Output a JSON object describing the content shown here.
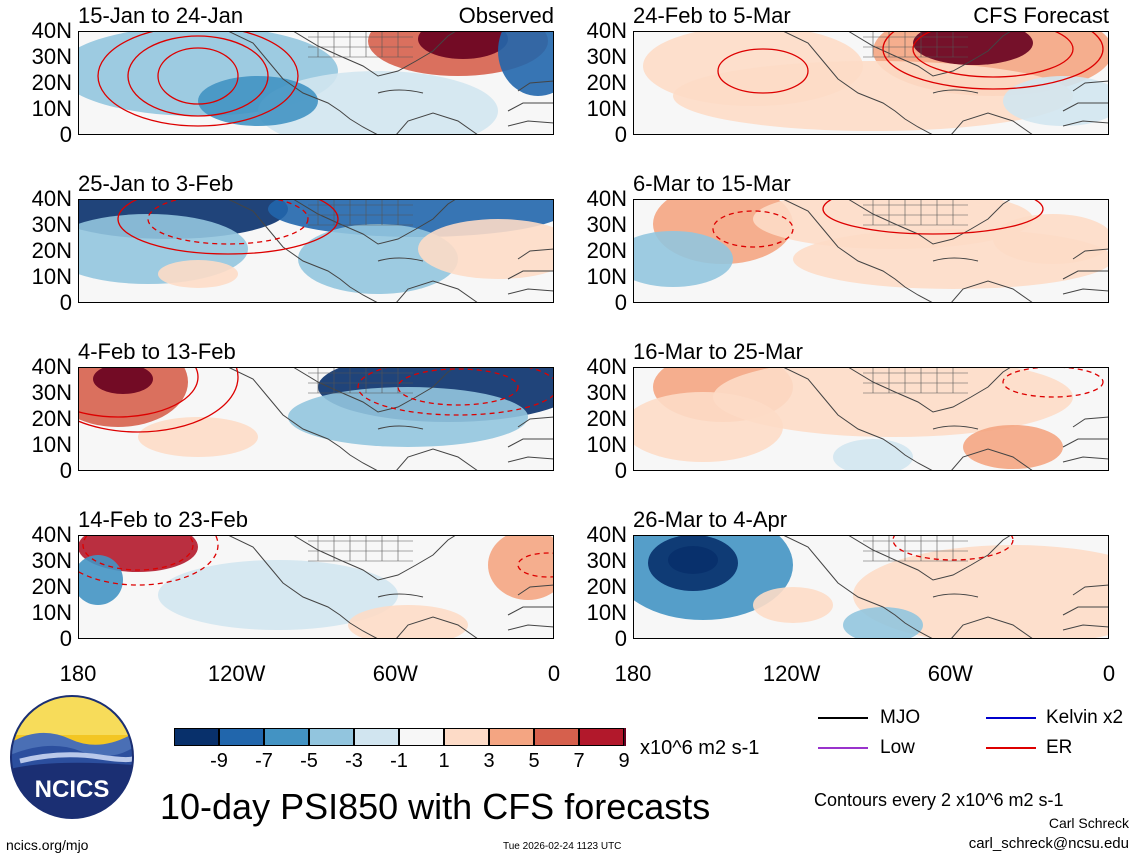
{
  "panels": [
    {
      "id": "p1",
      "title": "15-Jan to 24-Jan",
      "right_label": "Observed"
    },
    {
      "id": "p2",
      "title": "25-Jan to 3-Feb",
      "right_label": ""
    },
    {
      "id": "p3",
      "title": "4-Feb to 13-Feb",
      "right_label": ""
    },
    {
      "id": "p4",
      "title": "14-Feb to 23-Feb",
      "right_label": ""
    },
    {
      "id": "p5",
      "title": "24-Feb to 5-Mar",
      "right_label": "CFS Forecast"
    },
    {
      "id": "p6",
      "title": "6-Mar to 15-Mar",
      "right_label": ""
    },
    {
      "id": "p7",
      "title": "16-Mar to 25-Mar",
      "right_label": ""
    },
    {
      "id": "p8",
      "title": "26-Mar to 4-Apr",
      "right_label": ""
    }
  ],
  "y_ticks": [
    "40N",
    "30N",
    "20N",
    "10N",
    "0"
  ],
  "x_ticks": [
    "180",
    "120W",
    "60W",
    "0"
  ],
  "colorbar": {
    "colors": [
      "#08306b",
      "#2166ac",
      "#4393c3",
      "#92c5de",
      "#d1e5f0",
      "#f7f7f7",
      "#fddbc7",
      "#f4a582",
      "#d6604d",
      "#b2182b",
      "#67001f"
    ],
    "labels": [
      "-9",
      "-7",
      "-5",
      "-3",
      "-1",
      "1",
      "3",
      "5",
      "7",
      "9"
    ],
    "units": "x10^6 m2 s-1"
  },
  "legend": {
    "mjo": "MJO",
    "mjo_color": "#000000",
    "kelvin": "Kelvin x2",
    "kelvin_color": "#0000cc",
    "low": "Low",
    "low_color": "#9933cc",
    "er": "ER",
    "er_color": "#dd0000"
  },
  "main_title": "10-day PSI850 with CFS forecasts",
  "contour_note": "Contours every 2 x10^6 m2 s-1",
  "author": "Carl Schreck",
  "email": "carl_schreck@ncsu.edu",
  "site": "ncics.org/mjo",
  "timestamp": "Tue 2026-02-24 1123 UTC",
  "logo_text": "NCICS"
}
